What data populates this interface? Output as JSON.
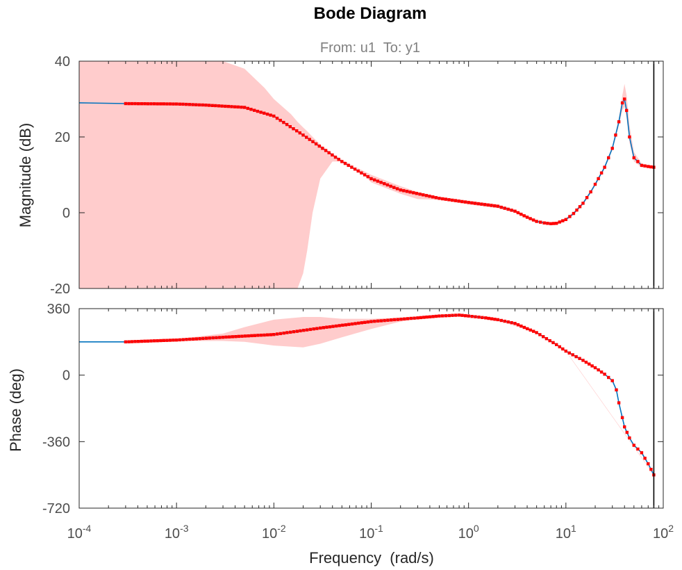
{
  "chart_data": {
    "type": "line",
    "title": "Bode Diagram",
    "subtitle": "From: u1  To: y1",
    "xlabel": "Frequency  (rad/s)",
    "xscale": "log",
    "xlim": [
      0.0001,
      100
    ],
    "x_ticks": [
      {
        "value": 0.0001,
        "base": "10",
        "exp": "-4"
      },
      {
        "value": 0.001,
        "base": "10",
        "exp": "-3"
      },
      {
        "value": 0.01,
        "base": "10",
        "exp": "-2"
      },
      {
        "value": 0.1,
        "base": "10",
        "exp": "-1"
      },
      {
        "value": 1,
        "base": "10",
        "exp": "0"
      },
      {
        "value": 10,
        "base": "10",
        "exp": "1"
      },
      {
        "value": 100,
        "base": "10",
        "exp": "2"
      }
    ],
    "nyquist_frequency": 80,
    "colors": {
      "line": "#0072bd",
      "markers": "#ff0000",
      "band": "#ffcccc",
      "axes": "#262626"
    },
    "magnitude": {
      "ylabel": "Magnitude (dB)",
      "ylim": [
        -20,
        40
      ],
      "yticks": [
        -20,
        0,
        20,
        40
      ],
      "series": [
        {
          "style": "line",
          "x": [
            0.0001,
            0.0003,
            0.001,
            0.002,
            0.005,
            0.01,
            0.02,
            0.05,
            0.1,
            0.2,
            0.5,
            1,
            2,
            3,
            4,
            5,
            6,
            7,
            8,
            10,
            12,
            15,
            18,
            20,
            25,
            30,
            35,
            38,
            40,
            42,
            45,
            50,
            60,
            70,
            80
          ],
          "y": [
            29,
            28.8,
            28.7,
            28.4,
            27.8,
            25.5,
            20.5,
            13.5,
            9,
            6,
            3.8,
            2.7,
            1.7,
            0.4,
            -1.2,
            -2.3,
            -2.7,
            -2.9,
            -2.8,
            -1.8,
            -0.2,
            2.5,
            5.5,
            7.5,
            12,
            17,
            24,
            29,
            30,
            27,
            20,
            14.5,
            12.5,
            12.2,
            12
          ]
        },
        {
          "style": "markers",
          "x": [
            0.0003,
            0.001,
            0.002,
            0.005,
            0.01,
            0.02,
            0.05,
            0.1,
            0.2,
            0.5,
            1,
            2,
            3,
            4,
            5,
            6,
            7,
            8,
            10,
            12,
            15,
            18,
            20,
            25,
            30,
            35,
            38,
            40,
            42,
            45,
            50,
            60,
            70,
            80
          ],
          "y": [
            28.8,
            28.7,
            28.4,
            27.8,
            25.5,
            20.5,
            13.5,
            9,
            6,
            3.8,
            2.7,
            1.7,
            0.4,
            -1.2,
            -2.3,
            -2.7,
            -2.9,
            -2.8,
            -1.8,
            -0.2,
            2.5,
            5.5,
            7.5,
            12,
            17,
            24,
            29,
            30,
            27,
            20,
            14.5,
            12.5,
            12.2,
            12
          ]
        }
      ],
      "confidence_band": {
        "x": [
          0.0001,
          0.0003,
          0.001,
          0.003,
          0.005,
          0.008,
          0.01,
          0.015,
          0.0175,
          0.02,
          0.022,
          0.025,
          0.03,
          0.04,
          0.05,
          0.07,
          0.1,
          0.2,
          0.3,
          0.5,
          1,
          2,
          3,
          4,
          5,
          6,
          7,
          8,
          10,
          12,
          15,
          18,
          20,
          25,
          30,
          35,
          38,
          40,
          42,
          45,
          50,
          60,
          70,
          80
        ],
        "upper": [
          40,
          40,
          40,
          40,
          38,
          33,
          30,
          26,
          24,
          22.5,
          21.5,
          20,
          18,
          15.5,
          14,
          12,
          10,
          7,
          5.5,
          4.2,
          3.2,
          2.2,
          0.8,
          -0.8,
          -1.9,
          -2.3,
          -2.5,
          -2.4,
          -1.4,
          0.2,
          2.9,
          5.9,
          7.9,
          12.4,
          17.5,
          25,
          31,
          34,
          31,
          23,
          16,
          13,
          12.5,
          12.3
        ],
        "lower": [
          -20,
          -20,
          -20,
          -20,
          -20,
          -20,
          -20,
          -20,
          -20,
          -16,
          -10,
          0,
          9,
          13.5,
          13.5,
          12,
          8,
          5,
          3.6,
          3.4,
          2.2,
          1.2,
          0,
          -1.6,
          -2.7,
          -3.1,
          -3.3,
          -3.2,
          -2.2,
          -0.6,
          2.1,
          5.1,
          7.1,
          11.6,
          16.5,
          23,
          27,
          28,
          25,
          18.5,
          13.5,
          12,
          11.8,
          11.7
        ]
      }
    },
    "phase": {
      "ylabel": "Phase (deg)",
      "ylim": [
        -720,
        360
      ],
      "yticks": [
        -720,
        -360,
        0,
        360
      ],
      "series": [
        {
          "style": "line",
          "x": [
            0.0001,
            0.0003,
            0.001,
            0.003,
            0.01,
            0.03,
            0.1,
            0.3,
            0.5,
            0.8,
            1,
            1.5,
            2,
            3,
            5,
            8,
            10,
            15,
            20,
            25,
            30,
            33,
            35,
            38,
            40,
            45,
            50,
            60,
            70,
            80
          ],
          "y": [
            180,
            180,
            190,
            205,
            220,
            255,
            290,
            310,
            320,
            325,
            320,
            310,
            300,
            280,
            230,
            165,
            130,
            80,
            40,
            5,
            -30,
            -80,
            -150,
            -230,
            -280,
            -340,
            -380,
            -420,
            -480,
            -540
          ]
        },
        {
          "style": "markers",
          "x": [
            0.0003,
            0.001,
            0.003,
            0.01,
            0.03,
            0.1,
            0.3,
            0.5,
            0.8,
            1,
            1.5,
            2,
            3,
            5,
            8,
            10,
            15,
            20,
            25,
            30,
            33,
            35,
            38,
            40,
            45,
            50,
            60,
            70,
            80
          ],
          "y": [
            180,
            190,
            205,
            220,
            255,
            290,
            310,
            320,
            325,
            320,
            310,
            300,
            280,
            230,
            165,
            130,
            80,
            40,
            5,
            -30,
            -80,
            -150,
            -230,
            -280,
            -340,
            -380,
            -420,
            -480,
            -540
          ]
        }
      ],
      "confidence_band": {
        "x": [
          0.0001,
          0.0003,
          0.001,
          0.003,
          0.005,
          0.01,
          0.02,
          0.03,
          0.05,
          0.1,
          0.2,
          0.3,
          0.5,
          0.8,
          1,
          2,
          5,
          10,
          80
        ],
        "upper": [
          180,
          182,
          195,
          225,
          260,
          300,
          315,
          315,
          305,
          305,
          312,
          315,
          322,
          327,
          322,
          302,
          232,
          132,
          -538
        ],
        "lower": [
          180,
          178,
          185,
          185,
          180,
          160,
          150,
          170,
          205,
          250,
          290,
          305,
          318,
          323,
          318,
          298,
          228,
          128,
          -542
        ]
      }
    }
  }
}
